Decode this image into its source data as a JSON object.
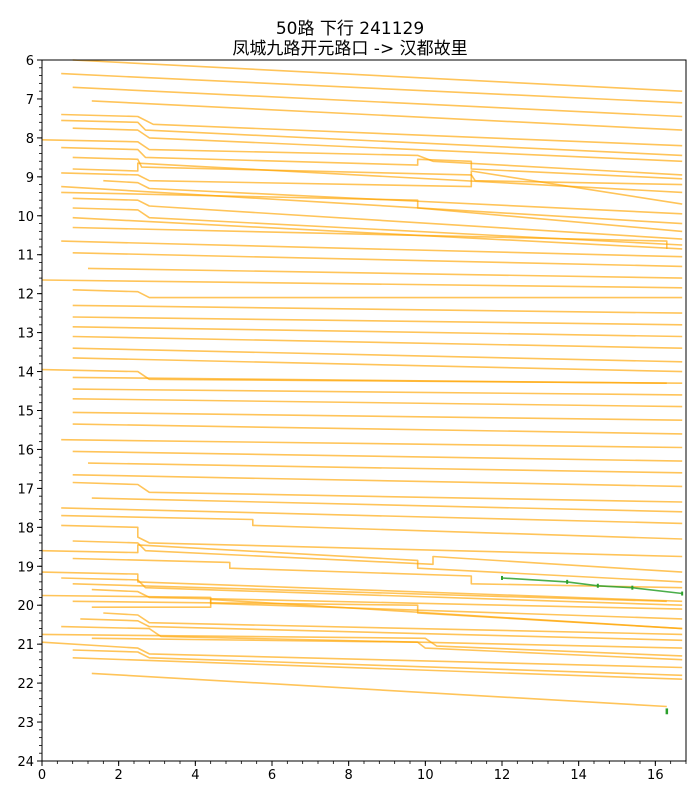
{
  "chart_data": {
    "type": "line",
    "title": "50路 下行 241129",
    "subtitle": "凤城九路开元路口 -> 汉都故里",
    "xlabel": "",
    "ylabel": "",
    "xlim": [
      0,
      16.8
    ],
    "ylim": [
      24,
      6
    ],
    "y_inverted": true,
    "grid": false,
    "x_ticks": [
      "0",
      "2",
      "4",
      "6",
      "8",
      "10",
      "12",
      "14",
      "16"
    ],
    "y_ticks": [
      "6",
      "7",
      "8",
      "9",
      "10",
      "11",
      "12",
      "13",
      "14",
      "15",
      "16",
      "17",
      "18",
      "19",
      "20",
      "21",
      "22",
      "23",
      "24"
    ],
    "colors": {
      "trip": "#ffa500",
      "highlight": "#2ca02c"
    },
    "series": [
      {
        "x": [
          0.8,
          16.7
        ],
        "y": [
          6.0,
          6.8
        ]
      },
      {
        "x": [
          0.5,
          16.7
        ],
        "y": [
          6.35,
          7.1
        ]
      },
      {
        "x": [
          0.8,
          16.7
        ],
        "y": [
          6.7,
          7.45
        ]
      },
      {
        "x": [
          1.3,
          16.7
        ],
        "y": [
          7.05,
          7.8
        ]
      },
      {
        "x": [
          0.5,
          2.5,
          2.9,
          16.7
        ],
        "y": [
          7.4,
          7.45,
          7.65,
          8.2
        ]
      },
      {
        "x": [
          0.5,
          2.5,
          2.7,
          16.7
        ],
        "y": [
          7.55,
          7.6,
          7.8,
          8.45
        ]
      },
      {
        "x": [
          0.8,
          2.5,
          2.8,
          16.7
        ],
        "y": [
          7.75,
          7.8,
          8.0,
          8.6
        ]
      },
      {
        "x": [
          0.0,
          2.5,
          2.8,
          9.8,
          10.2,
          16.7
        ],
        "y": [
          8.05,
          8.1,
          8.3,
          8.45,
          8.6,
          8.95
        ]
      },
      {
        "x": [
          0.5,
          2.5,
          2.7,
          9.8,
          9.8,
          11.2,
          11.2,
          16.7
        ],
        "y": [
          8.25,
          8.3,
          8.5,
          8.7,
          8.55,
          8.6,
          8.8,
          9.05
        ]
      },
      {
        "x": [
          0.8,
          2.5,
          2.6,
          11.2,
          11.3,
          16.7
        ],
        "y": [
          8.5,
          8.55,
          8.75,
          8.95,
          9.1,
          9.2
        ]
      },
      {
        "x": [
          0.8,
          2.5,
          2.5,
          16.7
        ],
        "y": [
          8.8,
          8.85,
          8.65,
          9.4
        ]
      },
      {
        "x": [
          0.5,
          2.5,
          2.8,
          11.2,
          11.2,
          16.7
        ],
        "y": [
          8.9,
          8.95,
          9.1,
          9.25,
          8.85,
          9.7
        ]
      },
      {
        "x": [
          1.6,
          2.5,
          2.8,
          16.7
        ],
        "y": [
          9.1,
          9.15,
          9.3,
          9.95
        ]
      },
      {
        "x": [
          0.5,
          16.7
        ],
        "y": [
          9.25,
          10.2
        ]
      },
      {
        "x": [
          0.5,
          9.8,
          9.8,
          16.7
        ],
        "y": [
          9.4,
          9.6,
          9.8,
          10.4
        ]
      },
      {
        "x": [
          0.8,
          2.5,
          2.8,
          16.7
        ],
        "y": [
          9.55,
          9.6,
          9.75,
          10.6
        ]
      },
      {
        "x": [
          0.8,
          2.5,
          2.8,
          16.7
        ],
        "y": [
          9.8,
          9.85,
          10.05,
          10.75
        ]
      },
      {
        "x": [
          0.8,
          16.7
        ],
        "y": [
          10.05,
          10.85
        ]
      },
      {
        "x": [
          0.8,
          16.3,
          16.3
        ],
        "y": [
          10.3,
          10.65,
          10.85
        ]
      },
      {
        "x": [
          0.5,
          16.7
        ],
        "y": [
          10.65,
          11.05
        ]
      },
      {
        "x": [
          0.8,
          16.7
        ],
        "y": [
          10.95,
          11.3
        ]
      },
      {
        "x": [
          1.2,
          16.7
        ],
        "y": [
          11.35,
          11.6
        ]
      },
      {
        "x": [
          0.0,
          16.7
        ],
        "y": [
          11.65,
          11.85
        ]
      },
      {
        "x": [
          0.8,
          2.5,
          2.8,
          16.7
        ],
        "y": [
          11.9,
          11.95,
          12.1,
          12.1
        ]
      },
      {
        "x": [
          0.8,
          16.7
        ],
        "y": [
          12.3,
          12.5
        ]
      },
      {
        "x": [
          0.8,
          16.7
        ],
        "y": [
          12.6,
          12.8
        ]
      },
      {
        "x": [
          0.8,
          16.7
        ],
        "y": [
          12.85,
          13.1
        ]
      },
      {
        "x": [
          0.8,
          16.7
        ],
        "y": [
          13.1,
          13.4
        ]
      },
      {
        "x": [
          0.8,
          16.7
        ],
        "y": [
          13.4,
          13.75
        ]
      },
      {
        "x": [
          0.8,
          16.7
        ],
        "y": [
          13.65,
          14.0
        ]
      },
      {
        "x": [
          0.0,
          2.5,
          2.8,
          16.7
        ],
        "y": [
          13.95,
          14.0,
          14.2,
          14.3
        ]
      },
      {
        "x": [
          0.8,
          16.3
        ],
        "y": [
          14.15,
          14.3
        ]
      },
      {
        "x": [
          0.8,
          16.7
        ],
        "y": [
          14.45,
          14.6
        ]
      },
      {
        "x": [
          0.8,
          16.7
        ],
        "y": [
          14.7,
          14.9
        ]
      },
      {
        "x": [
          0.8,
          16.7
        ],
        "y": [
          15.05,
          15.25
        ]
      },
      {
        "x": [
          0.8,
          16.7
        ],
        "y": [
          15.35,
          15.6
        ]
      },
      {
        "x": [
          0.5,
          16.7
        ],
        "y": [
          15.75,
          15.95
        ]
      },
      {
        "x": [
          0.8,
          16.7
        ],
        "y": [
          16.05,
          16.3
        ]
      },
      {
        "x": [
          1.2,
          16.7
        ],
        "y": [
          16.35,
          16.6
        ]
      },
      {
        "x": [
          0.8,
          16.7
        ],
        "y": [
          16.65,
          16.95
        ]
      },
      {
        "x": [
          0.8,
          2.5,
          2.8,
          16.7
        ],
        "y": [
          16.85,
          16.9,
          17.1,
          17.35
        ]
      },
      {
        "x": [
          1.3,
          16.7
        ],
        "y": [
          17.25,
          17.6
        ]
      },
      {
        "x": [
          0.5,
          16.7
        ],
        "y": [
          17.5,
          17.9
        ]
      },
      {
        "x": [
          0.5,
          5.5,
          5.5,
          16.7
        ],
        "y": [
          17.7,
          17.8,
          17.95,
          18.3
        ]
      },
      {
        "x": [
          0.5,
          2.5,
          2.5,
          2.8,
          16.7
        ],
        "y": [
          17.95,
          18.0,
          18.25,
          18.4,
          18.75
        ]
      },
      {
        "x": [
          0.8,
          2.5,
          2.7,
          10.2,
          10.2,
          16.7
        ],
        "y": [
          18.35,
          18.4,
          18.6,
          18.95,
          18.75,
          19.15
        ]
      },
      {
        "x": [
          0.0,
          2.5,
          2.5,
          9.8,
          9.8,
          16.7
        ],
        "y": [
          18.6,
          18.65,
          18.45,
          18.85,
          19.05,
          19.4
        ]
      },
      {
        "x": [
          0.8,
          4.9,
          4.9,
          11.2,
          11.2,
          16.7
        ],
        "y": [
          18.8,
          18.9,
          19.05,
          19.25,
          19.45,
          19.55
        ]
      },
      {
        "x": [
          0.0,
          2.5,
          2.5,
          16.7
        ],
        "y": [
          19.15,
          19.2,
          19.4,
          19.9
        ]
      },
      {
        "x": [
          0.5,
          2.5,
          2.7,
          16.7
        ],
        "y": [
          19.3,
          19.35,
          19.55,
          20.0
        ]
      },
      {
        "x": [
          0.8,
          16.3
        ],
        "y": [
          19.45,
          19.9
        ]
      },
      {
        "x": [
          1.3,
          2.5,
          2.8,
          16.7
        ],
        "y": [
          19.6,
          19.65,
          19.8,
          20.1
        ]
      },
      {
        "x": [
          0.0,
          4.4,
          4.4,
          16.7
        ],
        "y": [
          19.75,
          19.8,
          19.95,
          20.35
        ]
      },
      {
        "x": [
          0.8,
          9.8,
          9.8,
          16.7
        ],
        "y": [
          19.9,
          20.0,
          20.2,
          20.6
        ]
      },
      {
        "x": [
          1.3,
          4.4,
          4.4,
          16.7
        ],
        "y": [
          20.05,
          20.05,
          19.85,
          20.6
        ]
      },
      {
        "x": [
          1.6,
          2.5,
          2.8,
          16.7
        ],
        "y": [
          20.2,
          20.25,
          20.45,
          20.75
        ]
      },
      {
        "x": [
          1.0,
          2.5,
          2.8,
          16.7
        ],
        "y": [
          20.35,
          20.4,
          20.55,
          20.9
        ]
      },
      {
        "x": [
          0.5,
          2.8,
          3.1,
          16.7
        ],
        "y": [
          20.55,
          20.6,
          20.8,
          21.1
        ]
      },
      {
        "x": [
          0.0,
          10.0,
          10.3,
          16.7
        ],
        "y": [
          20.75,
          20.85,
          21.05,
          21.3
        ]
      },
      {
        "x": [
          1.3,
          9.8,
          10.0,
          16.7
        ],
        "y": [
          20.85,
          20.95,
          21.1,
          21.4
        ]
      },
      {
        "x": [
          0.0,
          2.5,
          2.8,
          16.7
        ],
        "y": [
          20.95,
          21.1,
          21.25,
          21.6
        ]
      },
      {
        "x": [
          0.8,
          2.5,
          2.8,
          16.7
        ],
        "y": [
          21.15,
          21.2,
          21.35,
          21.8
        ]
      },
      {
        "x": [
          0.8,
          16.7
        ],
        "y": [
          21.35,
          21.9
        ]
      },
      {
        "x": [
          1.3,
          16.3
        ],
        "y": [
          21.75,
          22.6
        ]
      }
    ],
    "highlight_series": {
      "x": [
        12.0,
        13.7,
        14.5,
        15.4,
        16.7
      ],
      "y": [
        19.3,
        19.4,
        19.5,
        19.55,
        19.7
      ]
    },
    "highlight_marks": [
      {
        "x": 16.3,
        "y": [
          22.65,
          22.8
        ]
      }
    ]
  }
}
